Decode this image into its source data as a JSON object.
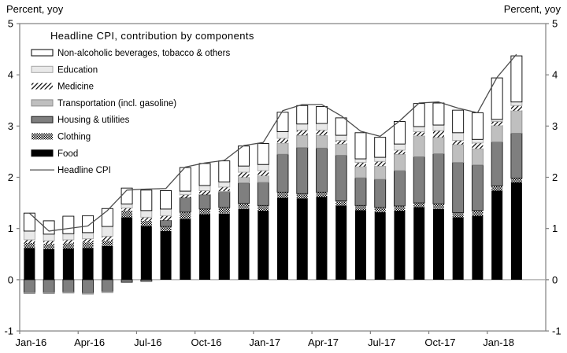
{
  "header": {
    "left_axis_caption": "Percent, yoy",
    "right_axis_caption": "Percent, yoy"
  },
  "chart_data": {
    "type": "bar",
    "subtype": "stacked-bar-with-line",
    "title": "Headline CPI, contribution by components",
    "xlabel": "",
    "ylabel": "Percent, yoy",
    "ylim": [
      -1,
      5
    ],
    "ytick_step": 1,
    "ytick_labels": [
      "-1",
      "0",
      "1",
      "2",
      "3",
      "4",
      "5"
    ],
    "grid": "zero-line-only",
    "legend_position": "top-left-inside",
    "categories": [
      "Jan-16",
      "Feb-16",
      "Mar-16",
      "Apr-16",
      "May-16",
      "Jun-16",
      "Jul-16",
      "Aug-16",
      "Sep-16",
      "Oct-16",
      "Nov-16",
      "Dec-16",
      "Jan-17",
      "Feb-17",
      "Mar-17",
      "Apr-17",
      "May-17",
      "Jun-17",
      "Jul-17",
      "Aug-17",
      "Sep-17",
      "Oct-17",
      "Nov-17",
      "Dec-17",
      "Jan-18",
      "Feb-18"
    ],
    "x_tick_label_months": [
      "Jan-16",
      "Apr-16",
      "Jul-16",
      "Oct-16",
      "Jan-17",
      "Apr-17",
      "Jul-17",
      "Oct-17",
      "Jan-18"
    ],
    "series": [
      {
        "name": "Food",
        "style": "solid",
        "color": "#000000",
        "stroke": "none",
        "values": [
          0.62,
          0.6,
          0.61,
          0.62,
          0.66,
          1.22,
          1.05,
          0.95,
          1.19,
          1.28,
          1.29,
          1.38,
          1.35,
          1.6,
          1.59,
          1.62,
          1.45,
          1.36,
          1.32,
          1.35,
          1.42,
          1.38,
          1.22,
          1.25,
          1.74,
          1.9
        ]
      },
      {
        "name": "Clothing",
        "style": "checker-hatch",
        "color": "#000000",
        "stroke": "none",
        "values": [
          0.1,
          0.1,
          0.1,
          0.11,
          0.1,
          0.13,
          0.1,
          0.09,
          0.13,
          0.1,
          0.12,
          0.11,
          0.1,
          0.11,
          0.09,
          0.09,
          0.09,
          0.09,
          0.09,
          0.09,
          0.08,
          0.1,
          0.09,
          0.1,
          0.09,
          0.08
        ]
      },
      {
        "name": "Housing & utilities",
        "style": "solid",
        "color": "#7f7f7f",
        "stroke": "#1a1a1a",
        "values": [
          -0.25,
          -0.25,
          -0.24,
          -0.26,
          -0.23,
          -0.05,
          -0.03,
          0.12,
          0.28,
          0.28,
          0.3,
          0.4,
          0.45,
          0.74,
          0.9,
          0.86,
          0.89,
          0.54,
          0.55,
          0.69,
          0.9,
          0.98,
          0.98,
          0.89,
          0.86,
          0.88
        ]
      },
      {
        "name": "Transportation (incl. gasoline)",
        "style": "solid",
        "color": "#bfbfbf",
        "stroke": "#8c8c8c",
        "values": [
          -0.02,
          -0.02,
          -0.02,
          -0.02,
          -0.02,
          0,
          0,
          0,
          0,
          0,
          0.02,
          0.11,
          0.13,
          0.22,
          0.24,
          0.25,
          0.22,
          0.22,
          0.26,
          0.32,
          0.41,
          0.32,
          0.35,
          0.32,
          0.32,
          0.44
        ]
      },
      {
        "name": "Medicine",
        "style": "diagonal-hatch",
        "color": "#000000",
        "stroke": "none",
        "values": [
          0.06,
          0.06,
          0.07,
          0.07,
          0.09,
          0.05,
          0.07,
          0.09,
          0.06,
          0.08,
          0.08,
          0.1,
          0.1,
          0.09,
          0.1,
          0.1,
          0.07,
          0.08,
          0.09,
          0.08,
          0.08,
          0.13,
          0.08,
          0.11,
          0.08,
          0.1
        ]
      },
      {
        "name": "Education",
        "style": "solid",
        "color": "#e9e9e9",
        "stroke": "#a6a6a6",
        "values": [
          0.17,
          0.13,
          0.12,
          0.12,
          0.19,
          0.08,
          0.13,
          0.13,
          0.07,
          0.1,
          0.1,
          0.12,
          0.12,
          0.13,
          0.12,
          0.13,
          0.1,
          0.07,
          0.08,
          0.12,
          0.1,
          0.11,
          0.15,
          0.07,
          0.04,
          0.07
        ]
      },
      {
        "name": "Non-alcoholic beverages, tobacco & others",
        "style": "solid",
        "color": "#ffffff",
        "stroke": "#000000",
        "values": [
          0.35,
          0.26,
          0.34,
          0.33,
          0.35,
          0.31,
          0.4,
          0.36,
          0.46,
          0.43,
          0.41,
          0.39,
          0.41,
          0.38,
          0.36,
          0.33,
          0.34,
          0.51,
          0.39,
          0.44,
          0.45,
          0.43,
          0.44,
          0.52,
          0.81,
          0.9
        ]
      }
    ],
    "line_series": {
      "name": "Headline CPI",
      "color": "#4d4d4d",
      "values": [
        1.3,
        0.95,
        1.0,
        1.05,
        1.35,
        1.75,
        1.77,
        1.78,
        2.2,
        2.28,
        2.33,
        2.62,
        2.68,
        3.3,
        3.42,
        3.42,
        3.2,
        2.9,
        2.8,
        3.1,
        3.45,
        3.47,
        3.35,
        3.26,
        3.95,
        4.4
      ]
    },
    "legend_order": [
      "Non-alcoholic beverages, tobacco & others",
      "Education",
      "Medicine",
      "Transportation (incl. gasoline)",
      "Housing & utilities",
      "Clothing",
      "Food",
      "Headline CPI"
    ],
    "colors": {
      "plot_border": "#808080",
      "zero_line": "#a6a6a6",
      "text": "#000000"
    }
  }
}
